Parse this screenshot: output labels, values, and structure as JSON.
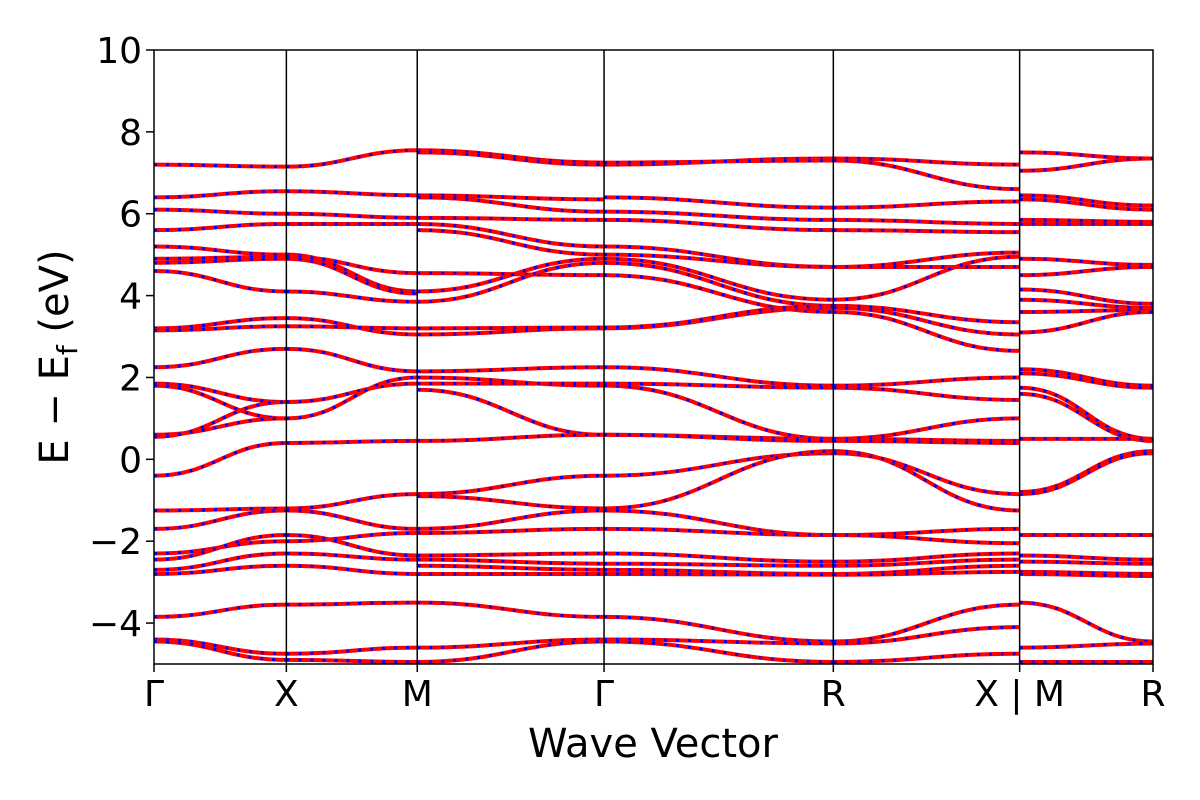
{
  "chart_data": {
    "type": "line",
    "xlabel": "Wave Vector",
    "ylabel_main": "E − E",
    "ylabel_sub": "f",
    "ylabel_unit": "(eV)",
    "ylim": [
      -5,
      10
    ],
    "yticks": [
      10,
      8,
      6,
      4,
      2,
      0,
      -2,
      -4
    ],
    "ytick_labels": [
      "10",
      "8",
      "6",
      "4",
      "2",
      "0",
      "−2",
      "−4"
    ],
    "k_points": [
      {
        "label": "Γ",
        "x": 0.0
      },
      {
        "label": "X",
        "x": 0.1325
      },
      {
        "label": "M",
        "x": 0.2635
      },
      {
        "label": "Γ",
        "x": 0.4505
      },
      {
        "label": "R",
        "x": 0.68
      },
      {
        "label": "X | M",
        "x": 0.8665
      },
      {
        "label": "R",
        "x": 1.0
      }
    ],
    "xlim": [
      0,
      1
    ],
    "grid": false,
    "series_colors": {
      "solid": "#ff0000",
      "dashed": "#0000ff"
    },
    "segments": [
      {
        "from": "Γ",
        "to": "X",
        "bands": [
          [
            7.2,
            7.15
          ],
          [
            6.4,
            6.55
          ],
          [
            6.1,
            6.0
          ],
          [
            5.6,
            5.75
          ],
          [
            5.2,
            5.0
          ],
          [
            4.9,
            4.95
          ],
          [
            4.8,
            4.9
          ],
          [
            4.6,
            4.1
          ],
          [
            3.2,
            3.45
          ],
          [
            3.15,
            3.25
          ],
          [
            2.25,
            2.7
          ],
          [
            1.85,
            1.4
          ],
          [
            1.8,
            1.0
          ],
          [
            0.6,
            1.0
          ],
          [
            0.55,
            1.4
          ],
          [
            -0.4,
            0.4
          ],
          [
            -1.25,
            -1.2
          ],
          [
            -1.7,
            -1.25
          ],
          [
            -2.3,
            -2.0
          ],
          [
            -2.45,
            -1.85
          ],
          [
            -2.7,
            -2.3
          ],
          [
            -2.8,
            -2.6
          ],
          [
            -3.85,
            -3.55
          ],
          [
            -4.4,
            -4.75
          ],
          [
            -4.45,
            -4.9
          ]
        ]
      },
      {
        "from": "X",
        "to": "M",
        "bands": [
          [
            7.15,
            7.55
          ],
          [
            6.55,
            6.45
          ],
          [
            6.0,
            5.9
          ],
          [
            5.75,
            5.75
          ],
          [
            5.0,
            4.1
          ],
          [
            4.95,
            4.55
          ],
          [
            4.9,
            4.05
          ],
          [
            4.1,
            3.85
          ],
          [
            3.45,
            3.05
          ],
          [
            3.25,
            3.2
          ],
          [
            2.7,
            2.15
          ],
          [
            1.4,
            1.85
          ],
          [
            1.0,
            2.0
          ],
          [
            0.4,
            0.45
          ],
          [
            -1.2,
            -0.85
          ],
          [
            -1.25,
            -1.7
          ],
          [
            -2.0,
            -1.8
          ],
          [
            -1.85,
            -2.35
          ],
          [
            -2.3,
            -2.45
          ],
          [
            -2.6,
            -2.8
          ],
          [
            -3.55,
            -3.5
          ],
          [
            -4.75,
            -4.6
          ],
          [
            -4.9,
            -4.95
          ]
        ]
      },
      {
        "from": "M",
        "to": "Γ",
        "bands": [
          [
            7.55,
            7.25
          ],
          [
            7.5,
            7.2
          ],
          [
            6.45,
            6.35
          ],
          [
            6.4,
            6.05
          ],
          [
            5.9,
            5.85
          ],
          [
            5.75,
            5.2
          ],
          [
            5.6,
            5.0
          ],
          [
            4.55,
            4.5
          ],
          [
            4.1,
            4.9
          ],
          [
            3.85,
            4.8
          ],
          [
            3.05,
            3.2
          ],
          [
            3.2,
            3.22
          ],
          [
            2.15,
            2.25
          ],
          [
            2.0,
            1.8
          ],
          [
            1.85,
            1.85
          ],
          [
            1.7,
            0.6
          ],
          [
            0.45,
            0.6
          ],
          [
            -0.85,
            -0.4
          ],
          [
            -0.9,
            -1.2
          ],
          [
            -1.7,
            -1.25
          ],
          [
            -1.8,
            -1.7
          ],
          [
            -2.35,
            -2.3
          ],
          [
            -2.45,
            -2.55
          ],
          [
            -2.6,
            -2.7
          ],
          [
            -2.8,
            -2.8
          ],
          [
            -3.5,
            -3.85
          ],
          [
            -4.6,
            -4.4
          ],
          [
            -4.95,
            -4.45
          ]
        ]
      },
      {
        "from": "Γ",
        "to": "R",
        "bands": [
          [
            7.2,
            7.35
          ],
          [
            7.25,
            7.3
          ],
          [
            6.4,
            6.15
          ],
          [
            6.05,
            5.85
          ],
          [
            5.85,
            5.6
          ],
          [
            5.2,
            4.7
          ],
          [
            5.0,
            4.7
          ],
          [
            4.9,
            3.9
          ],
          [
            4.8,
            3.75
          ],
          [
            4.5,
            3.6
          ],
          [
            3.2,
            3.7
          ],
          [
            3.22,
            3.75
          ],
          [
            2.25,
            1.8
          ],
          [
            1.85,
            1.75
          ],
          [
            1.8,
            0.5
          ],
          [
            0.6,
            0.5
          ],
          [
            0.6,
            0.45
          ],
          [
            -0.4,
            0.15
          ],
          [
            -1.2,
            0.2
          ],
          [
            -1.25,
            -1.85
          ],
          [
            -1.7,
            -1.85
          ],
          [
            -2.3,
            -2.5
          ],
          [
            -2.55,
            -2.6
          ],
          [
            -2.7,
            -2.8
          ],
          [
            -2.8,
            -2.82
          ],
          [
            -3.85,
            -4.45
          ],
          [
            -4.4,
            -4.5
          ],
          [
            -4.45,
            -4.95
          ]
        ]
      },
      {
        "from": "R",
        "to": "X",
        "bands": [
          [
            7.35,
            7.2
          ],
          [
            7.3,
            6.6
          ],
          [
            6.15,
            6.3
          ],
          [
            5.85,
            5.75
          ],
          [
            5.6,
            5.55
          ],
          [
            4.7,
            4.7
          ],
          [
            4.7,
            5.05
          ],
          [
            3.9,
            4.95
          ],
          [
            3.75,
            3.35
          ],
          [
            3.7,
            3.05
          ],
          [
            3.6,
            2.65
          ],
          [
            1.8,
            2.0
          ],
          [
            1.75,
            1.45
          ],
          [
            0.5,
            1.0
          ],
          [
            0.5,
            0.45
          ],
          [
            0.45,
            0.4
          ],
          [
            0.2,
            -1.25
          ],
          [
            0.15,
            -0.85
          ],
          [
            -1.85,
            -1.7
          ],
          [
            -1.85,
            -2.05
          ],
          [
            -2.5,
            -2.3
          ],
          [
            -2.6,
            -2.45
          ],
          [
            -2.8,
            -2.6
          ],
          [
            -2.82,
            -2.75
          ],
          [
            -4.45,
            -3.55
          ],
          [
            -4.5,
            -4.1
          ],
          [
            -4.95,
            -4.75
          ]
        ]
      },
      {
        "from": "M",
        "to": "R",
        "bands": [
          [
            7.5,
            7.35
          ],
          [
            7.05,
            7.35
          ],
          [
            6.45,
            6.2
          ],
          [
            6.35,
            6.1
          ],
          [
            5.85,
            5.8
          ],
          [
            5.75,
            5.75
          ],
          [
            4.9,
            4.75
          ],
          [
            4.5,
            4.7
          ],
          [
            4.15,
            3.8
          ],
          [
            3.9,
            3.7
          ],
          [
            3.6,
            3.65
          ],
          [
            3.1,
            3.6
          ],
          [
            2.2,
            1.8
          ],
          [
            2.1,
            1.75
          ],
          [
            1.75,
            0.5
          ],
          [
            1.6,
            0.45
          ],
          [
            0.5,
            0.5
          ],
          [
            -0.8,
            0.2
          ],
          [
            -0.85,
            0.15
          ],
          [
            -1.85,
            -1.85
          ],
          [
            -2.35,
            -2.45
          ],
          [
            -2.5,
            -2.55
          ],
          [
            -2.75,
            -2.8
          ],
          [
            -2.8,
            -2.85
          ],
          [
            -3.5,
            -4.45
          ],
          [
            -4.6,
            -4.5
          ],
          [
            -4.95,
            -4.95
          ]
        ]
      }
    ]
  }
}
